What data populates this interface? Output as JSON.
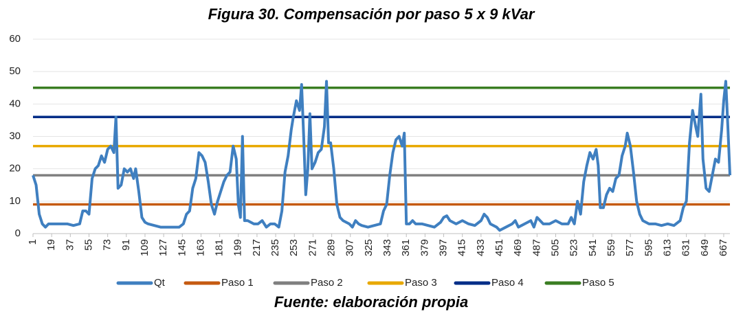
{
  "chart_data": {
    "type": "line",
    "title": "Figura 30. Compensación por paso 5 x 9 kVar",
    "source": "Fuente: elaboración propia",
    "xlim": [
      1,
      673
    ],
    "xticks": [
      1,
      19,
      37,
      55,
      73,
      91,
      109,
      127,
      145,
      163,
      181,
      199,
      217,
      235,
      253,
      271,
      289,
      307,
      325,
      343,
      361,
      379,
      397,
      415,
      433,
      451,
      469,
      487,
      505,
      523,
      541,
      559,
      577,
      595,
      613,
      631,
      649,
      667
    ],
    "ylim": [
      0,
      60
    ],
    "yticks": [
      0,
      10,
      20,
      30,
      40,
      50,
      60
    ],
    "grid": true,
    "legend": "bottom",
    "series": [
      {
        "name": "Qt",
        "color": "#3f7fc0",
        "x": [
          1,
          4,
          7,
          10,
          13,
          16,
          22,
          28,
          34,
          40,
          46,
          49,
          52,
          55,
          58,
          61,
          64,
          67,
          70,
          73,
          76,
          79,
          81,
          83,
          86,
          89,
          92,
          95,
          98,
          100,
          103,
          106,
          109,
          112,
          118,
          124,
          130,
          136,
          142,
          146,
          149,
          152,
          155,
          158,
          161,
          164,
          167,
          170,
          173,
          176,
          179,
          182,
          185,
          188,
          191,
          194,
          197,
          199,
          201,
          203,
          205,
          208,
          214,
          218,
          222,
          226,
          230,
          234,
          238,
          241,
          244,
          247,
          250,
          252,
          255,
          258,
          260,
          262,
          264,
          266,
          268,
          270,
          273,
          276,
          279,
          282,
          284,
          286,
          288,
          291,
          294,
          297,
          300,
          303,
          306,
          309,
          312,
          315,
          318,
          324,
          330,
          336,
          339,
          342,
          345,
          348,
          351,
          354,
          357,
          359,
          361,
          364,
          367,
          370,
          376,
          382,
          388,
          394,
          397,
          400,
          403,
          409,
          415,
          421,
          427,
          433,
          436,
          439,
          442,
          448,
          451,
          457,
          463,
          466,
          469,
          475,
          481,
          484,
          487,
          493,
          499,
          505,
          511,
          517,
          520,
          523,
          526,
          529,
          532,
          535,
          538,
          541,
          544,
          546,
          548,
          551,
          554,
          557,
          560,
          563,
          566,
          569,
          572,
          574,
          577,
          580,
          583,
          586,
          589,
          595,
          601,
          607,
          613,
          619,
          625,
          628,
          631,
          634,
          637,
          640,
          642,
          645,
          647,
          650,
          653,
          656,
          659,
          662,
          665,
          667,
          669,
          671,
          673
        ],
        "values": [
          18,
          15,
          6,
          3,
          2,
          3,
          3,
          3,
          3,
          2.5,
          3,
          7,
          7,
          6,
          17,
          20,
          21,
          24,
          22,
          26,
          27,
          25,
          36,
          14,
          15,
          20,
          19,
          20,
          17,
          20,
          13,
          5,
          3.5,
          3,
          2.5,
          2,
          2,
          2,
          2,
          3,
          6,
          7,
          14,
          17,
          25,
          24,
          22,
          16,
          9,
          6,
          10,
          13,
          16,
          18,
          19,
          27,
          23,
          9,
          5,
          30,
          4,
          4,
          3,
          3,
          4,
          2,
          3,
          3,
          2,
          7,
          19,
          24,
          32,
          36,
          41,
          38,
          46,
          30,
          12,
          20,
          37,
          20,
          22,
          25,
          26,
          33,
          47,
          28,
          28,
          20,
          9,
          5,
          4,
          3.5,
          3,
          2,
          4,
          3,
          2.5,
          2,
          2.5,
          3,
          7,
          9,
          18,
          25,
          29,
          30,
          27,
          31,
          3,
          3,
          4,
          3,
          3,
          2.5,
          2,
          3.5,
          5,
          5.5,
          4,
          3,
          4,
          3,
          2.5,
          4,
          6,
          5,
          3,
          2,
          1,
          2,
          3,
          4,
          2,
          3,
          4,
          2,
          5,
          3,
          3,
          4,
          3,
          3,
          5,
          3,
          10,
          6,
          16,
          21,
          25,
          23,
          26,
          21,
          8,
          8,
          12,
          14,
          13,
          17,
          18,
          24,
          27,
          31,
          27,
          19,
          10,
          6,
          4,
          3,
          3,
          2.5,
          3,
          2.5,
          4,
          8,
          10,
          28,
          38,
          33,
          30,
          43,
          23,
          14,
          13,
          18,
          23,
          22,
          32,
          41,
          47,
          33,
          18
        ]
      },
      {
        "name": "Paso 1",
        "color": "#c55a11",
        "x": [
          1,
          673
        ],
        "values": [
          9,
          9
        ]
      },
      {
        "name": "Paso 2",
        "color": "#7f7f7f",
        "x": [
          1,
          673
        ],
        "values": [
          18,
          18
        ]
      },
      {
        "name": "Paso 3",
        "color": "#e8a800",
        "x": [
          1,
          673
        ],
        "values": [
          27,
          27
        ]
      },
      {
        "name": "Paso 4",
        "color": "#002d87",
        "x": [
          1,
          673
        ],
        "values": [
          36,
          36
        ]
      },
      {
        "name": "Paso 5",
        "color": "#3a7d22",
        "x": [
          1,
          673
        ],
        "values": [
          45,
          45
        ]
      }
    ]
  }
}
